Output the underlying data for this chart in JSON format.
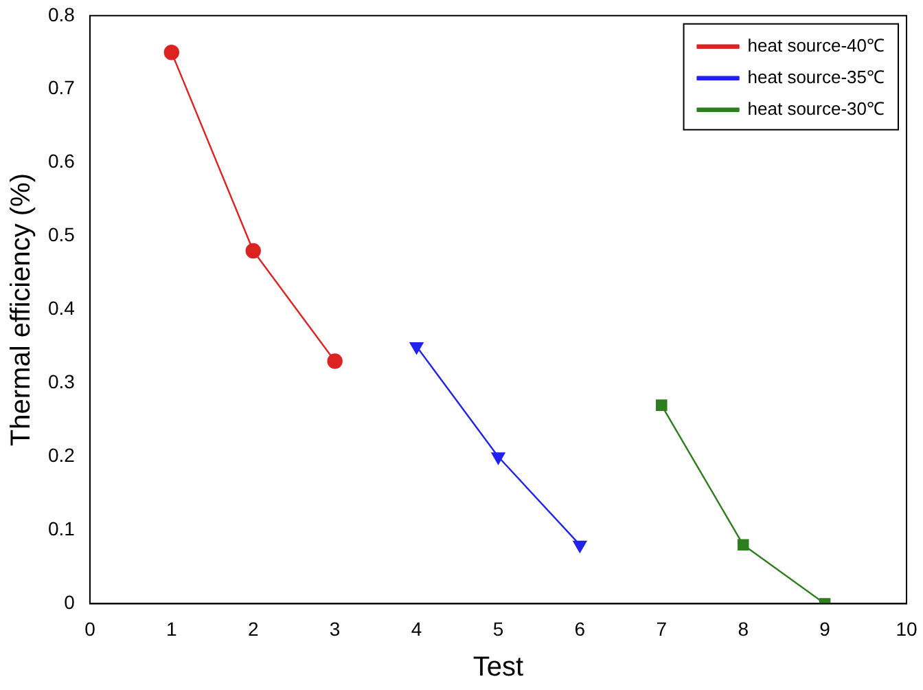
{
  "chart_data": {
    "type": "line",
    "xlabel": "Test",
    "ylabel": "Thermal efficiency (%)",
    "xlim": [
      0,
      10
    ],
    "xticks": [
      0,
      1,
      2,
      3,
      4,
      5,
      6,
      7,
      8,
      9,
      10
    ],
    "ylim": [
      0,
      0.8
    ],
    "yticks": [
      0,
      0.1,
      0.2,
      0.3,
      0.4,
      0.5,
      0.6,
      0.7,
      0.8
    ],
    "grid": false,
    "legend": "top right",
    "line_style": "solid",
    "series": [
      {
        "name": "heat source-40℃",
        "color": "#dd2222",
        "marker": "circle",
        "x": [
          1,
          2,
          3
        ],
        "values": [
          0.75,
          0.48,
          0.33
        ]
      },
      {
        "name": "heat source-35℃",
        "color": "#2222ee",
        "marker": "triangle",
        "x": [
          4,
          5,
          6
        ],
        "values": [
          0.35,
          0.2,
          0.08
        ]
      },
      {
        "name": "heat source-30℃",
        "color": "#2e7d1e",
        "marker": "square",
        "x": [
          7,
          8,
          9
        ],
        "values": [
          0.27,
          0.08,
          0
        ]
      }
    ]
  }
}
